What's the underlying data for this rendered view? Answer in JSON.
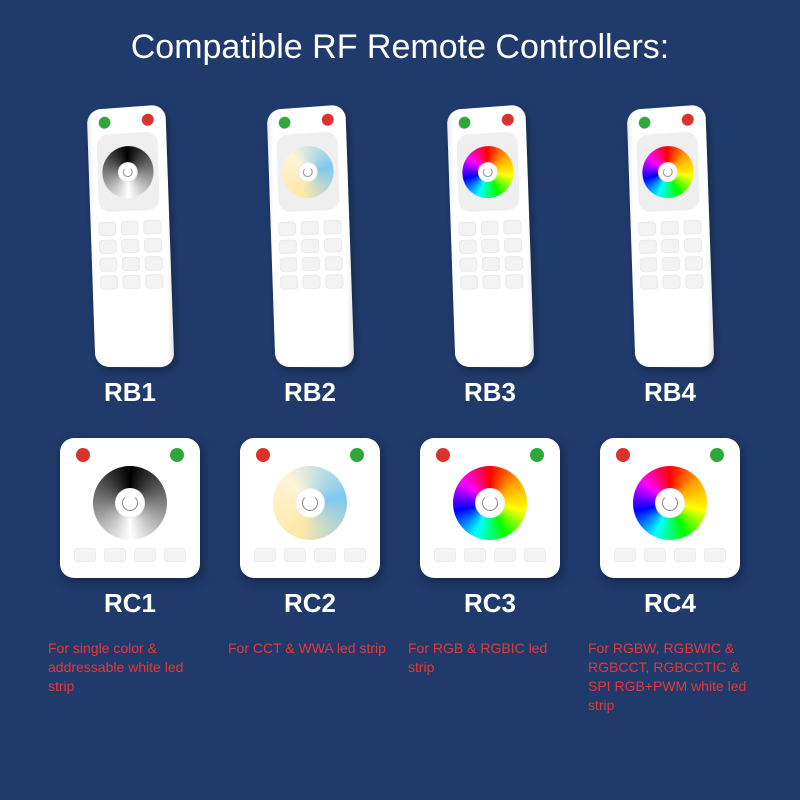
{
  "background_color": "#1f3a6b",
  "title": "Compatible RF Remote Controllers:",
  "title_color": "#ffffff",
  "label_color": "#ffffff",
  "desc_color": "#e53935",
  "columns": [
    {
      "remote_label": "RB1",
      "panel_label": "RC1",
      "wheel_type": "mono",
      "desc": "For single color & addressable white led strip"
    },
    {
      "remote_label": "RB2",
      "panel_label": "RC2",
      "wheel_type": "cct",
      "desc": "For CCT & WWA led strip"
    },
    {
      "remote_label": "RB3",
      "panel_label": "RC3",
      "wheel_type": "rgb",
      "desc": "For RGB & RGBIC led strip"
    },
    {
      "remote_label": "RB4",
      "panel_label": "RC4",
      "wheel_type": "rgb",
      "desc": "For RGBW, RGBWIC & RGBCCT, RGBCCTIC & SPI RGB+PWM white led strip"
    }
  ],
  "accent_green": "#2fa83b",
  "accent_red": "#d9332b"
}
